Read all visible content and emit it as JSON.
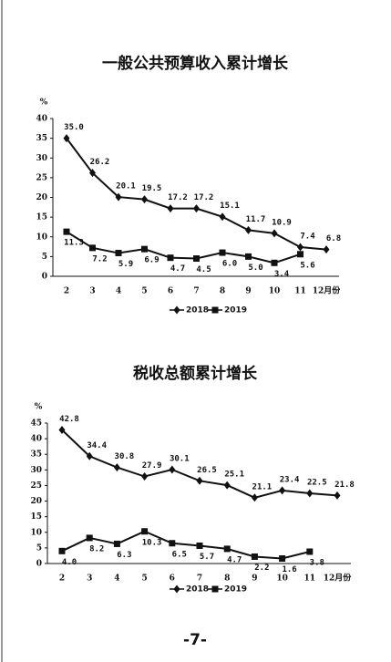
{
  "chart_data": [
    {
      "type": "line",
      "title": "一般公共预算收入累计增长",
      "y_label": "%",
      "categories": [
        "2",
        "3",
        "4",
        "5",
        "6",
        "7",
        "8",
        "9",
        "10",
        "11",
        "12月份"
      ],
      "series": [
        {
          "name": "2018",
          "color": "#111111",
          "marker": "diamond",
          "values": [
            35.0,
            26.2,
            20.1,
            19.5,
            17.2,
            17.2,
            15.1,
            11.7,
            10.9,
            7.4,
            6.8
          ],
          "value_labels": [
            "35.0",
            "26.2",
            "20.1",
            "19.5",
            "17.2",
            "17.2",
            "15.1",
            "11.7",
            "10.9",
            "7.4",
            "6.8"
          ]
        },
        {
          "name": "2019",
          "color": "#111111",
          "marker": "square",
          "values": [
            11.3,
            7.2,
            5.9,
            6.9,
            4.7,
            4.5,
            6.0,
            5.0,
            3.4,
            5.6,
            null
          ],
          "value_labels": [
            "11.3",
            "7.2",
            "5.9",
            "6.9",
            "4.7",
            "4.5",
            "6.0",
            "5.0",
            "3.4",
            "5.6",
            null
          ]
        }
      ],
      "ylim": [
        0,
        40
      ],
      "yticks": [
        0,
        5,
        10,
        15,
        20,
        25,
        30,
        35,
        40
      ]
    },
    {
      "type": "line",
      "title": "税收总额累计增长",
      "y_label": "%",
      "categories": [
        "2",
        "3",
        "4",
        "5",
        "6",
        "7",
        "8",
        "9",
        "10",
        "11",
        "12月份"
      ],
      "series": [
        {
          "name": "2018",
          "color": "#111111",
          "marker": "diamond",
          "values": [
            42.8,
            34.4,
            30.8,
            27.9,
            30.1,
            26.5,
            25.1,
            21.1,
            23.4,
            22.5,
            21.8
          ],
          "value_labels": [
            "42.8",
            "34.4",
            "30.8",
            "27.9",
            "30.1",
            "26.5",
            "25.1",
            "21.1",
            "23.4",
            "22.5",
            "21.8"
          ]
        },
        {
          "name": "2019",
          "color": "#111111",
          "marker": "square",
          "values": [
            4.0,
            8.2,
            6.3,
            10.3,
            6.5,
            5.7,
            4.7,
            2.2,
            1.6,
            3.8,
            null
          ],
          "value_labels": [
            "4.0",
            "8.2",
            "6.3",
            "10.3",
            "6.5",
            "5.7",
            "4.7",
            "2.2",
            "1.6",
            "3.8",
            null
          ]
        }
      ],
      "ylim": [
        0,
        45
      ],
      "yticks": [
        0,
        5,
        10,
        15,
        20,
        25,
        30,
        35,
        40,
        45
      ]
    }
  ],
  "page_number": "-7-"
}
